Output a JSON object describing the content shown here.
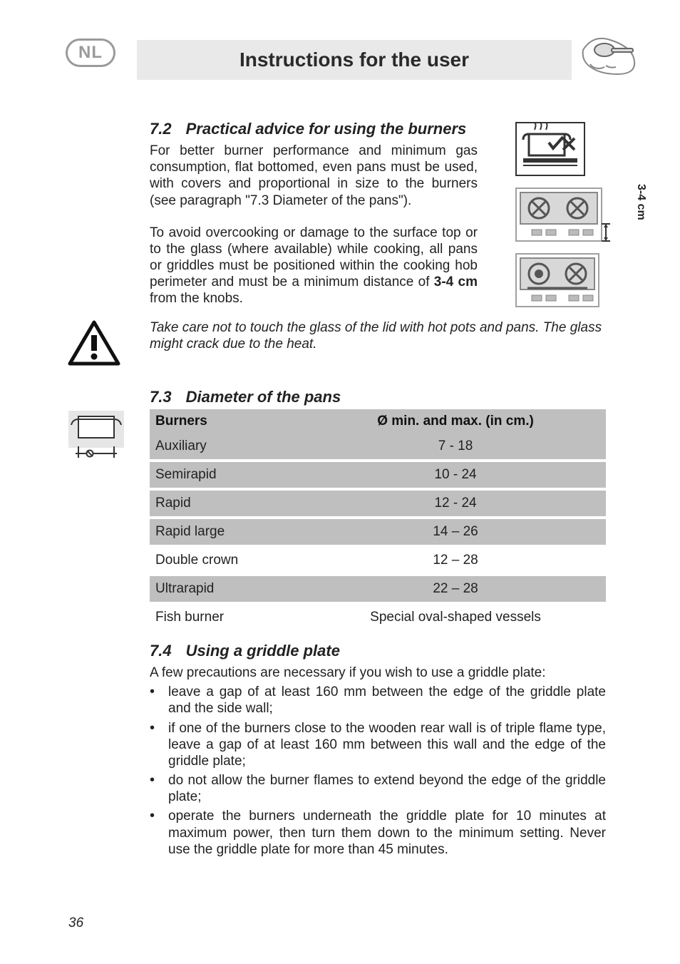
{
  "colors": {
    "page_bg": "#ffffff",
    "band_bg": "#e9e9e9",
    "shade_bg": "#bfbfbf",
    "text": "#222222",
    "badge_border": "#9a9a9a"
  },
  "header": {
    "badge": "NL",
    "title": "Instructions for the user"
  },
  "section72": {
    "num": "7.2",
    "title": "Practical advice for using the burners",
    "para1": "For better burner performance and minimum gas consumption, flat bottomed, even pans must be used, with covers and proportional in size to the burners (see paragraph \"7.3 Diameter of the pans\").",
    "para2_pre": "To avoid overcooking or damage to the surface top or to the glass (where available) while cooking, all pans or griddles must be positioned within the cooking hob perimeter and must be a minimum distance of ",
    "distance_bold": "3-4 cm",
    "para2_post": " from the knobs.",
    "dim_label": "3-4 cm"
  },
  "warning": {
    "text": "Take care not to touch the glass of the lid with hot pots and pans. The glass might crack due to the heat."
  },
  "section73": {
    "num": "7.3",
    "title": "Diameter of the pans",
    "headers": {
      "c1": "Burners",
      "c2": "Ø min. and max. (in cm.)"
    },
    "rows": [
      {
        "c1": "Auxiliary",
        "c2": "7 - 18",
        "shade": true
      },
      {
        "c1": "Semirapid",
        "c2": "10 - 24",
        "shade": true
      },
      {
        "c1": "Rapid",
        "c2": "12 - 24",
        "shade": true
      },
      {
        "c1": "Rapid large",
        "c2": "14 – 26",
        "shade": true
      },
      {
        "c1": "Double crown",
        "c2": "12 – 28",
        "shade": false
      },
      {
        "c1": "Ultrarapid",
        "c2": "22 – 28",
        "shade": true
      },
      {
        "c1": "Fish burner",
        "c2": "Special oval-shaped vessels",
        "shade": false
      }
    ]
  },
  "section74": {
    "num": "7.4",
    "title": "Using a griddle plate",
    "intro": "A few precautions are necessary if you wish to use a griddle plate:",
    "bullets": [
      "leave a gap of at least 160 mm between the edge of the griddle plate and the side wall;",
      "if one of the burners close to the wooden rear wall is of triple flame type, leave a gap of at least 160 mm between this wall and the edge of the griddle plate;",
      "do not allow the burner flames to extend beyond the edge of the griddle plate;",
      "operate the burners underneath the griddle plate for 10 minutes at maximum power, then turn them down to the minimum setting. Never use the griddle plate for more than 45 minutes."
    ]
  },
  "page_number": "36"
}
